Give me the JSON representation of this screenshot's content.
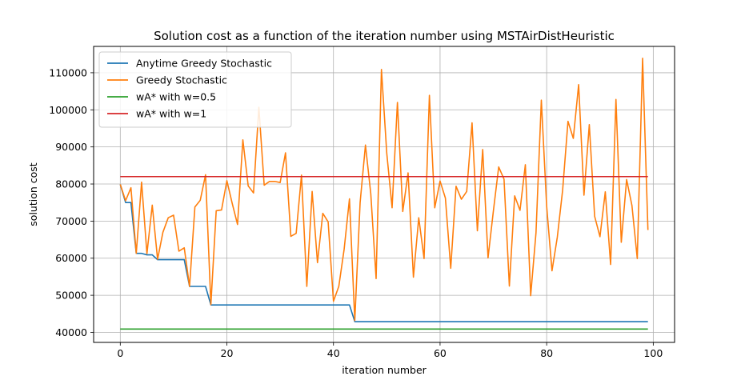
{
  "chart_data": {
    "type": "line",
    "title": "Solution cost as a function of the iteration number using MSTAirDistHeuristic",
    "xlabel": "iteration number",
    "ylabel": "solution cost",
    "xlim": [
      -5,
      104
    ],
    "ylim": [
      37300,
      117100
    ],
    "xticks": [
      0,
      20,
      40,
      60,
      80,
      100
    ],
    "yticks": [
      40000,
      50000,
      60000,
      70000,
      80000,
      90000,
      100000,
      110000
    ],
    "grid": true,
    "legend_position": "top-left",
    "series": [
      {
        "name": "Anytime Greedy Stochastic",
        "color": "#1f77b4",
        "y": [
          79900,
          75000,
          75000,
          61300,
          61300,
          60900,
          60900,
          59600,
          59600,
          59600,
          59600,
          59600,
          59600,
          52400,
          52400,
          52400,
          52400,
          47400,
          47400,
          47400,
          47400,
          47400,
          47400,
          47400,
          47400,
          47400,
          47400,
          47400,
          47400,
          47400,
          47400,
          47400,
          47400,
          47400,
          47400,
          47400,
          47400,
          47400,
          47400,
          47400,
          47400,
          47400,
          47400,
          47400,
          42900,
          42900,
          42900,
          42900,
          42900,
          42900,
          42900,
          42900,
          42900,
          42900,
          42900,
          42900,
          42900,
          42900,
          42900,
          42900,
          42900,
          42900,
          42900,
          42900,
          42900,
          42900,
          42900,
          42900,
          42900,
          42900,
          42900,
          42900,
          42900,
          42900,
          42900,
          42900,
          42900,
          42900,
          42900,
          42900,
          42900,
          42900,
          42900,
          42900,
          42900,
          42900,
          42900,
          42900,
          42900,
          42900,
          42900,
          42900,
          42900,
          42900,
          42900,
          42900,
          42900,
          42900,
          42900,
          42900
        ]
      },
      {
        "name": "Greedy Stochastic",
        "color": "#ff7f0e",
        "y": [
          79900,
          75500,
          79000,
          61300,
          80500,
          61200,
          74300,
          59700,
          67000,
          70900,
          71600,
          61900,
          62800,
          52400,
          73800,
          75600,
          82500,
          47500,
          72800,
          73000,
          80900,
          74800,
          69100,
          91900,
          79500,
          77600,
          100700,
          79700,
          80700,
          80700,
          80400,
          88400,
          65900,
          66700,
          82400,
          52400,
          78000,
          58800,
          72100,
          69800,
          48400,
          52400,
          62400,
          76000,
          43200,
          75000,
          90500,
          77400,
          54500,
          110900,
          88300,
          73600,
          102000,
          72600,
          83000,
          54900,
          70900,
          59900,
          103900,
          73600,
          80800,
          76200,
          57300,
          79400,
          75900,
          78000,
          96500,
          67400,
          89300,
          60100,
          72700,
          84600,
          81300,
          52500,
          76800,
          72900,
          85200,
          49900,
          66900,
          102600,
          74000,
          56600,
          65700,
          78400,
          96900,
          92300,
          106800,
          77000,
          96000,
          71300,
          65800,
          77900,
          58300,
          102800,
          64300,
          81200,
          74200,
          59900,
          113900,
          67600
        ]
      },
      {
        "name": "wA* with w=0.5",
        "color": "#2ca02c",
        "y_const": 40900,
        "x_range": [
          0,
          99
        ]
      },
      {
        "name": "wA* with w=1",
        "color": "#d62728",
        "y_const": 82000,
        "x_range": [
          0,
          99
        ]
      }
    ]
  }
}
